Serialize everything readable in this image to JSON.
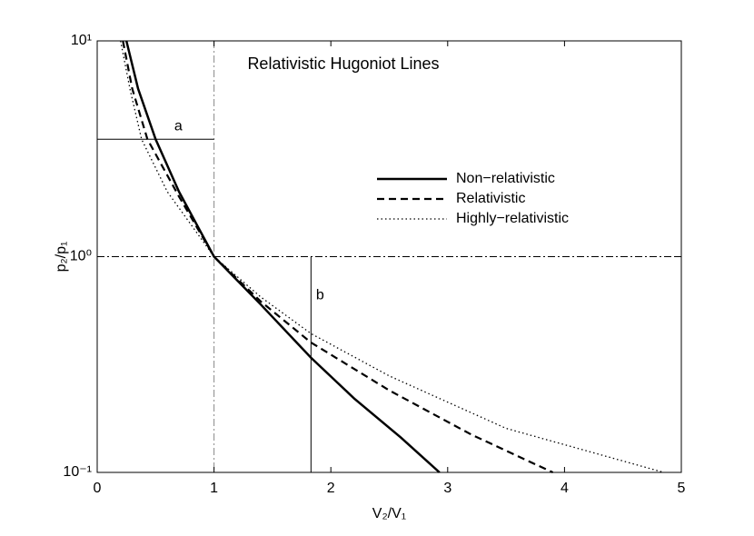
{
  "chart_data": {
    "type": "line",
    "title": "Relativistic Hugoniot Lines",
    "x_label": "V₂/V₁",
    "y_label": "p₂/p₁",
    "xlim": [
      0,
      5
    ],
    "ylim": [
      0.1,
      10
    ],
    "y_scale": "log",
    "xticks": [
      0,
      1,
      2,
      3,
      4,
      5
    ],
    "yticks": [
      {
        "value": 0.1,
        "label": "10⁻¹"
      },
      {
        "value": 1,
        "label": "10⁰"
      },
      {
        "value": 10,
        "label": "10¹"
      }
    ],
    "legend": "right",
    "series": [
      {
        "name": "Non−relativistic",
        "color": "#000000",
        "linestyle": "solid",
        "x": [
          0.25,
          0.35,
          0.5,
          0.7,
          1.0,
          1.4,
          1.83,
          2.2,
          2.6,
          2.93
        ],
        "values": [
          10,
          6,
          3.5,
          2.0,
          1.0,
          0.6,
          0.34,
          0.22,
          0.145,
          0.1
        ]
      },
      {
        "name": "Relativistic",
        "color": "#000000",
        "linestyle": "dashed",
        "x": [
          0.22,
          0.3,
          0.43,
          0.7,
          1.0,
          1.4,
          1.83,
          2.5,
          3.2,
          3.9
        ],
        "values": [
          10,
          6,
          3.5,
          1.9,
          1.0,
          0.62,
          0.4,
          0.24,
          0.15,
          0.1
        ]
      },
      {
        "name": "Highly−relativistic",
        "color": "#000000",
        "linestyle": "dotted",
        "x": [
          0.2,
          0.28,
          0.38,
          0.6,
          1.0,
          1.4,
          1.83,
          2.5,
          3.5,
          4.85
        ],
        "values": [
          10,
          6,
          3.5,
          2.0,
          1.0,
          0.65,
          0.44,
          0.28,
          0.16,
          0.1
        ]
      }
    ],
    "guides": {
      "x": 1,
      "y": 1
    },
    "annotations": [
      {
        "label": "a",
        "x": [
          0,
          1
        ],
        "y": [
          3.5,
          3.5
        ]
      },
      {
        "label": "b",
        "x": [
          1.83,
          1.83
        ],
        "y": [
          0.1,
          1
        ]
      }
    ]
  }
}
